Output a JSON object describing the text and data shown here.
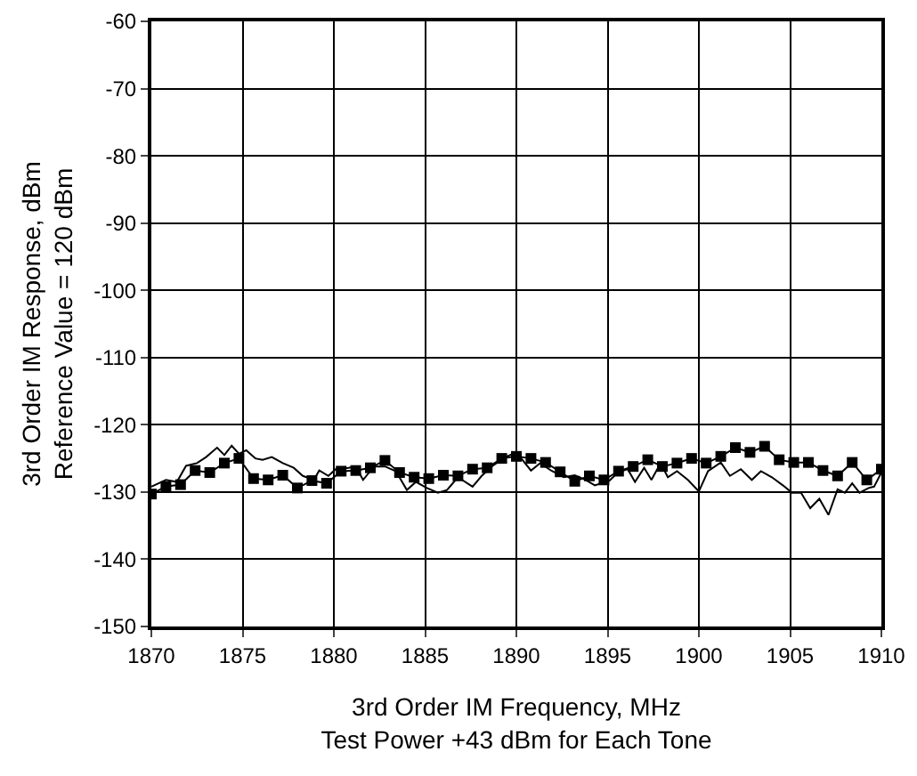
{
  "chart_data": {
    "type": "line",
    "xlabel": "3rd Order IM Frequency, MHz\nTest Power +43 dBm for Each Tone",
    "ylabel": "3rd Order IM Response, dBm\nReference Value = 120 dBm",
    "xlim": [
      1870,
      1910
    ],
    "xticks": [
      1870,
      1875,
      1880,
      1885,
      1890,
      1895,
      1900,
      1905,
      1910
    ],
    "ylim": [
      -150,
      -60
    ],
    "yticks": [
      -150,
      -140,
      -130,
      -120,
      -110,
      -100,
      -90,
      -80,
      -70,
      -60
    ],
    "grid": true,
    "line_style": "solid",
    "series": [
      {
        "color": "#000000",
        "marker": "square",
        "x": [
          1870,
          1870.8,
          1871.6,
          1872.4,
          1873.2,
          1874,
          1874.8,
          1875.6,
          1876.4,
          1877.2,
          1878,
          1878.8,
          1879.6,
          1880.4,
          1881.2,
          1882,
          1882.8,
          1883.6,
          1884.4,
          1885.2,
          1886,
          1886.8,
          1887.6,
          1888.4,
          1889.2,
          1890,
          1890.8,
          1891.6,
          1892.4,
          1893.2,
          1894,
          1894.8,
          1895.6,
          1896.4,
          1897.2,
          1898,
          1898.8,
          1899.6,
          1900.4,
          1901.2,
          1902,
          1902.8,
          1903.6,
          1904.4,
          1905.2,
          1906,
          1906.8,
          1907.6,
          1908.4,
          1909.2,
          1910
        ],
        "values": [
          -130.3,
          -129.2,
          -128.9,
          -126.8,
          -127.1,
          -125.7,
          -125,
          -128,
          -128.2,
          -127.5,
          -129.4,
          -128.3,
          -128.7,
          -126.9,
          -126.8,
          -126.4,
          -125.3,
          -127.1,
          -127.8,
          -128,
          -127.5,
          -127.6,
          -126.6,
          -126.4,
          -125,
          -124.7,
          -125,
          -125.6,
          -127,
          -128.4,
          -127.6,
          -128.2,
          -126.9,
          -126.2,
          -125.2,
          -126.2,
          -125.7,
          -125,
          -125.7,
          -124.7,
          -123.4,
          -124.1,
          -123.2,
          -125.2,
          -125.6,
          -125.6,
          -126.8,
          -127.6,
          -125.6,
          -128.2,
          -126.6
        ]
      },
      {
        "color": "#000000",
        "marker": "none",
        "x": [
          1870,
          1870.8,
          1871.4,
          1871.9,
          1872.5,
          1873,
          1873.6,
          1874,
          1874.4,
          1874.8,
          1875.2,
          1875.7,
          1876.1,
          1876.6,
          1877.2,
          1877.8,
          1878.3,
          1878.9,
          1879.2,
          1879.7,
          1880.1,
          1880.8,
          1881.2,
          1881.6,
          1882.2,
          1882.8,
          1883.4,
          1884,
          1884.5,
          1885.1,
          1885.7,
          1886.2,
          1886.8,
          1887.6,
          1888.1,
          1888.7,
          1889.4,
          1890,
          1890.8,
          1891.3,
          1891.9,
          1892.6,
          1893.2,
          1893.8,
          1894.3,
          1895.1,
          1895.6,
          1896.1,
          1896.5,
          1897,
          1897.4,
          1897.9,
          1898.3,
          1898.8,
          1899.4,
          1900,
          1900.5,
          1901.2,
          1901.7,
          1902.3,
          1902.9,
          1903.4,
          1904,
          1904.6,
          1905.1,
          1905.6,
          1906.1,
          1906.6,
          1907.1,
          1907.6,
          1908,
          1908.4,
          1908.8,
          1909.3,
          1909.6,
          1910
        ],
        "values": [
          -129.2,
          -128.2,
          -128.5,
          -126.1,
          -125.7,
          -124.8,
          -123.4,
          -124.5,
          -123.1,
          -124.3,
          -123.8,
          -125,
          -125.2,
          -124.8,
          -125.7,
          -126.4,
          -127.6,
          -128.2,
          -126.8,
          -127.6,
          -126.6,
          -126.4,
          -126.2,
          -128.2,
          -126.2,
          -126.2,
          -126.9,
          -129.7,
          -128.5,
          -129.4,
          -130.1,
          -129.7,
          -127.8,
          -129.2,
          -127.6,
          -126.1,
          -124.8,
          -124.1,
          -126.8,
          -125.7,
          -126.8,
          -127.8,
          -127.5,
          -128.2,
          -129,
          -128.3,
          -127,
          -126.6,
          -128.5,
          -126.4,
          -128.2,
          -125.7,
          -127.8,
          -126.9,
          -128.2,
          -129.9,
          -126.9,
          -125.6,
          -127.6,
          -126.6,
          -128.2,
          -126.9,
          -127.8,
          -129,
          -130.1,
          -130.1,
          -132.4,
          -131,
          -133.4,
          -129.6,
          -130.1,
          -128.7,
          -130.1,
          -129.4,
          -129.2,
          -127.1
        ]
      }
    ]
  }
}
